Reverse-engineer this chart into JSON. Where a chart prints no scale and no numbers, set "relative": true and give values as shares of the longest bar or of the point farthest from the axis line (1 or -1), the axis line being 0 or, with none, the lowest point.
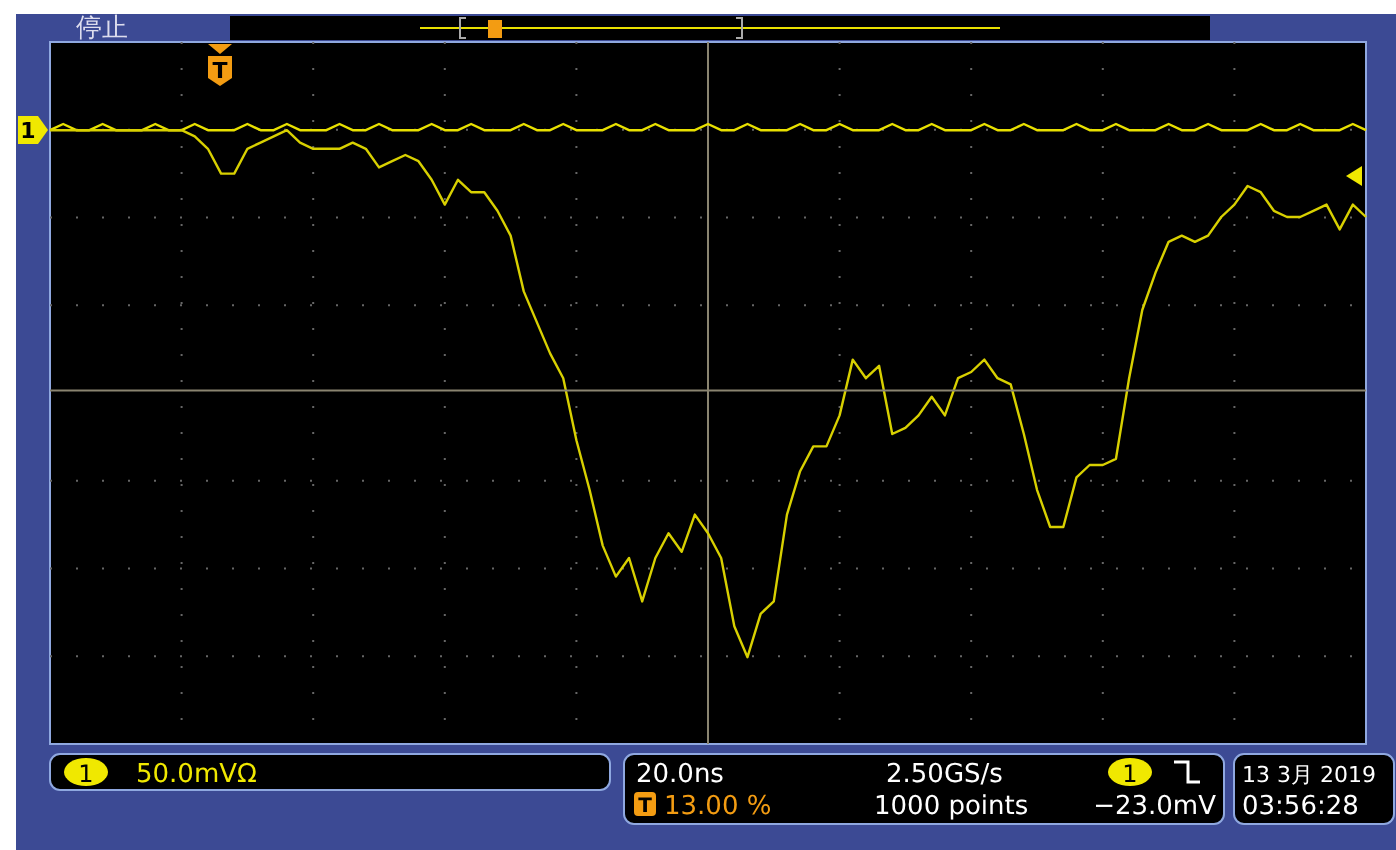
{
  "chart_data": {
    "type": "line",
    "relative": true,
    "grid": true,
    "line_style": "solid",
    "categories": [
      null,
      null,
      null,
      null,
      null,
      null,
      null,
      null,
      null,
      null,
      null,
      null,
      null,
      null,
      null,
      null,
      null,
      null,
      null,
      null,
      null,
      null,
      null,
      null,
      null,
      null,
      null,
      null,
      null,
      null,
      null,
      null,
      null,
      null,
      null,
      null,
      null,
      null,
      null,
      null,
      null,
      null,
      null,
      null,
      null,
      null,
      null,
      null,
      null,
      null,
      null,
      null,
      null,
      null,
      null,
      null,
      null,
      null,
      null,
      null,
      null,
      null,
      null,
      null,
      null,
      null,
      null,
      null,
      null,
      null,
      null,
      null,
      null,
      null,
      null,
      null,
      null,
      null,
      null,
      null,
      null,
      null,
      null,
      null,
      null,
      null,
      null,
      null,
      null,
      null,
      null,
      null,
      null,
      null,
      null,
      null,
      null,
      null,
      null,
      null,
      null
    ],
    "series": [
      {
        "color": "#e8e000",
        "values": [
          0.99,
          1.0,
          0.99,
          0.99,
          1.0,
          0.99,
          0.99,
          0.99,
          1.0,
          0.99,
          0.99,
          1.0,
          0.99,
          0.99,
          0.99,
          1.0,
          0.99,
          0.99,
          1.0,
          0.99,
          0.99,
          0.99,
          1.0,
          0.99,
          0.99,
          1.0,
          0.99,
          0.99,
          0.99,
          1.0,
          0.99,
          0.99,
          1.0,
          0.99,
          0.99,
          0.99,
          1.0,
          0.99,
          0.99,
          1.0,
          0.99,
          0.99,
          0.99,
          1.0,
          0.99,
          0.99,
          1.0,
          0.99,
          0.99,
          0.99,
          1.0,
          0.99,
          0.99,
          1.0,
          0.99,
          0.99,
          0.99,
          1.0,
          0.99,
          0.99,
          1.0,
          0.99,
          0.99,
          0.99,
          1.0,
          0.99,
          0.99,
          1.0,
          0.99,
          0.99,
          0.99,
          1.0,
          0.99,
          0.99,
          1.0,
          0.99,
          0.99,
          0.99,
          1.0,
          0.99,
          0.99,
          1.0,
          0.99,
          0.99,
          0.99,
          1.0,
          0.99,
          0.99,
          1.0,
          0.99,
          0.99,
          0.99,
          1.0,
          0.99,
          0.99,
          1.0,
          0.99,
          0.99,
          0.99,
          1.0,
          0.99
        ]
      },
      {
        "color": "#d8d000",
        "values": [
          0.99,
          0.99,
          0.99,
          0.99,
          0.99,
          0.99,
          0.99,
          0.99,
          0.99,
          0.99,
          0.99,
          0.98,
          0.96,
          0.92,
          0.92,
          0.96,
          0.97,
          0.98,
          0.99,
          0.97,
          0.96,
          0.96,
          0.96,
          0.97,
          0.96,
          0.93,
          0.94,
          0.95,
          0.94,
          0.91,
          0.87,
          0.91,
          0.89,
          0.89,
          0.86,
          0.82,
          0.73,
          0.68,
          0.63,
          0.59,
          0.49,
          0.41,
          0.32,
          0.27,
          0.3,
          0.23,
          0.3,
          0.34,
          0.31,
          0.37,
          0.34,
          0.3,
          0.19,
          0.14,
          0.21,
          0.23,
          0.37,
          0.44,
          0.48,
          0.48,
          0.53,
          0.62,
          0.59,
          0.61,
          0.5,
          0.51,
          0.53,
          0.56,
          0.53,
          0.59,
          0.6,
          0.62,
          0.59,
          0.58,
          0.5,
          0.41,
          0.35,
          0.35,
          0.43,
          0.45,
          0.45,
          0.46,
          0.59,
          0.7,
          0.76,
          0.81,
          0.82,
          0.81,
          0.82,
          0.85,
          0.87,
          0.9,
          0.89,
          0.86,
          0.85,
          0.85,
          0.86,
          0.87,
          0.83,
          0.87,
          0.85
        ]
      }
    ],
    "ref_lines": [
      {
        "axis": "y",
        "value": 0.57,
        "color": "#8a8470"
      }
    ],
    "annotations": [
      "停止",
      "1",
      "50.0mVΩ",
      "20.0ns",
      "T",
      "13.00 %",
      "2.50GS/s",
      "1000 points",
      "1",
      "−23.0mV",
      "13 3月  2019",
      "03:56:28",
      "1",
      "T"
    ]
  }
}
